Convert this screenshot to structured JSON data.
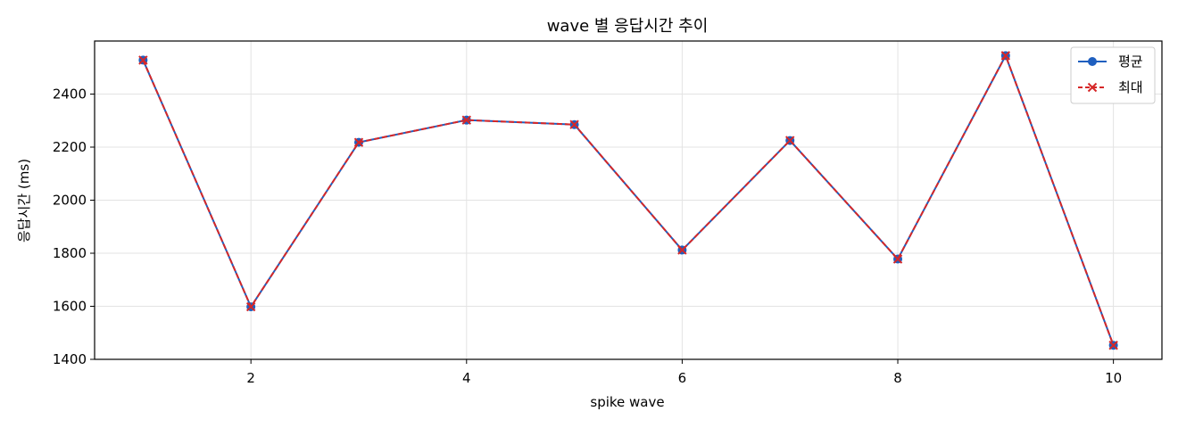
{
  "chart_data": {
    "type": "line",
    "title": "wave 별 응답시간 추이",
    "xlabel": "spike wave",
    "ylabel": "응답시간 (ms)",
    "x": [
      1,
      2,
      3,
      4,
      5,
      6,
      7,
      8,
      9,
      10
    ],
    "xlim": [
      0.55,
      10.45
    ],
    "ylim": [
      1400,
      2600
    ],
    "xticks": [
      2,
      4,
      6,
      8,
      10
    ],
    "yticks": [
      1400,
      1600,
      1800,
      2000,
      2200,
      2400
    ],
    "grid": true,
    "legend_position": "top-right",
    "series": [
      {
        "name": "평균",
        "values": [
          2528,
          1598,
          2218,
          2302,
          2285,
          1812,
          2225,
          1778,
          2545,
          1453
        ],
        "color": "#1f5fbf",
        "marker": "circle",
        "line_style": "solid"
      },
      {
        "name": "최대",
        "values": [
          2528,
          1598,
          2218,
          2302,
          2285,
          1812,
          2225,
          1778,
          2545,
          1453
        ],
        "color": "#d62728",
        "marker": "x",
        "line_style": "dashed"
      }
    ]
  }
}
